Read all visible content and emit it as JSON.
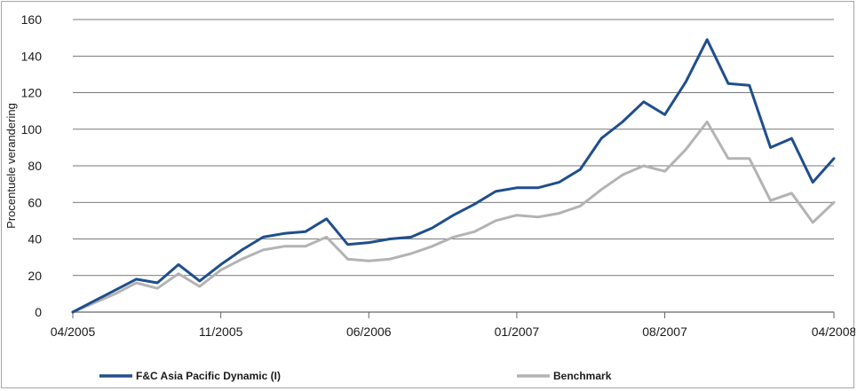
{
  "chart_data": {
    "type": "line",
    "title": "",
    "xlabel": "",
    "ylabel": "Procentuele verandering",
    "ylim": [
      0,
      160
    ],
    "yticks": [
      0,
      20,
      40,
      60,
      80,
      100,
      120,
      140,
      160
    ],
    "xticks": [
      "04/2005",
      "11/2005",
      "06/2006",
      "01/2007",
      "08/2007",
      "04/2008"
    ],
    "grid": "horizontal",
    "legend_position": "bottom",
    "x": [
      "04/2005",
      "05/2005",
      "06/2005",
      "07/2005",
      "08/2005",
      "09/2005",
      "10/2005",
      "11/2005",
      "12/2005",
      "01/2006",
      "02/2006",
      "03/2006",
      "04/2006",
      "05/2006",
      "06/2006",
      "07/2006",
      "08/2006",
      "09/2006",
      "10/2006",
      "11/2006",
      "12/2006",
      "01/2007",
      "02/2007",
      "03/2007",
      "04/2007",
      "05/2007",
      "06/2007",
      "07/2007",
      "08/2007",
      "09/2007",
      "10/2007",
      "11/2007",
      "12/2007",
      "01/2008",
      "02/2008",
      "03/2008",
      "04/2008"
    ],
    "series": [
      {
        "name": "F&C Asia Pacific Dynamic (I)",
        "color": "#1f4e8c",
        "values": [
          0,
          6,
          12,
          18,
          16,
          26,
          17,
          26,
          34,
          41,
          43,
          44,
          51,
          37,
          38,
          40,
          41,
          46,
          53,
          59,
          66,
          68,
          68,
          71,
          78,
          95,
          104,
          115,
          108,
          126,
          149,
          125,
          124,
          90,
          95,
          71,
          84
        ]
      },
      {
        "name": "Benchmark",
        "color": "#b3b3b3",
        "values": [
          0,
          5,
          10,
          16,
          13,
          21,
          14,
          23,
          29,
          34,
          36,
          36,
          41,
          29,
          28,
          29,
          32,
          36,
          41,
          44,
          50,
          53,
          52,
          54,
          58,
          67,
          75,
          80,
          77,
          89,
          104,
          84,
          84,
          61,
          65,
          49,
          60
        ]
      }
    ]
  }
}
